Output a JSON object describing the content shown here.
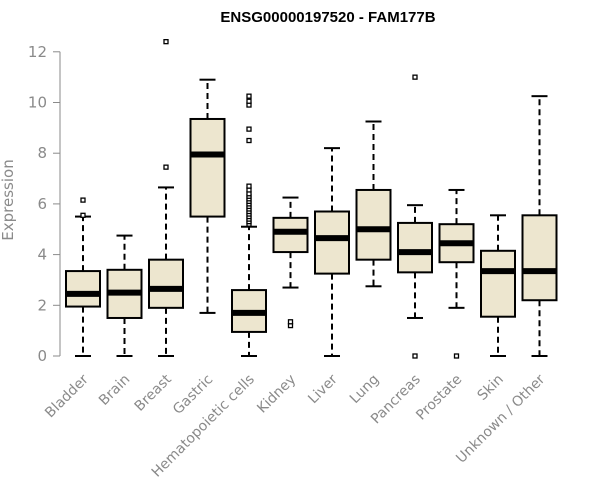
{
  "chart_data": {
    "type": "boxplot",
    "title": "ENSG00000197520 - FAM177B",
    "xlabel": "",
    "ylabel": "Expression",
    "ylim": [
      0,
      12.4
    ],
    "yticks": [
      0,
      2,
      4,
      6,
      8,
      10,
      12
    ],
    "colors": {
      "box_fill": "#ede6cf",
      "box_stroke": "#000000",
      "axis": "#8a8a8a",
      "text": "#8a8a8a"
    },
    "categories": [
      "Bladder",
      "Brain",
      "Breast",
      "Gastric",
      "Hematopoietic cells",
      "Kidney",
      "Liver",
      "Lung",
      "Pancreas",
      "Prostate",
      "Skin",
      "Unknown / Other"
    ],
    "boxes": [
      {
        "name": "Bladder",
        "min": 0,
        "q1": 1.95,
        "median": 2.45,
        "q3": 3.35,
        "max": 5.5,
        "outliers": [
          5.55,
          6.15
        ]
      },
      {
        "name": "Brain",
        "min": 0,
        "q1": 1.5,
        "median": 2.5,
        "q3": 3.4,
        "max": 4.75,
        "outliers": []
      },
      {
        "name": "Breast",
        "min": 0,
        "q1": 1.9,
        "median": 2.65,
        "q3": 3.8,
        "max": 6.65,
        "outliers": [
          7.45,
          12.4
        ]
      },
      {
        "name": "Gastric",
        "min": 1.7,
        "q1": 5.5,
        "median": 7.95,
        "q3": 9.35,
        "max": 10.9,
        "outliers": []
      },
      {
        "name": "Hematopoietic cells",
        "min": 0,
        "q1": 0.95,
        "median": 1.7,
        "q3": 2.6,
        "max": 5.1,
        "outliers": [
          5.2,
          5.3,
          5.4,
          5.5,
          5.6,
          5.7,
          5.8,
          5.9,
          6.0,
          6.1,
          6.2,
          6.3,
          6.4,
          6.55,
          6.7,
          8.5,
          8.95,
          9.9,
          10.05,
          10.25
        ]
      },
      {
        "name": "Kidney",
        "min": 2.7,
        "q1": 4.1,
        "median": 4.9,
        "q3": 5.45,
        "max": 6.25,
        "outliers": [
          1.2,
          1.35
        ]
      },
      {
        "name": "Liver",
        "min": 0,
        "q1": 3.25,
        "median": 4.65,
        "q3": 5.7,
        "max": 8.2,
        "outliers": []
      },
      {
        "name": "Lung",
        "min": 2.75,
        "q1": 3.8,
        "median": 5.0,
        "q3": 6.55,
        "max": 9.25,
        "outliers": []
      },
      {
        "name": "Pancreas",
        "min": 1.5,
        "q1": 3.3,
        "median": 4.1,
        "q3": 5.25,
        "max": 5.95,
        "outliers": [
          0,
          11.0
        ]
      },
      {
        "name": "Prostate",
        "min": 1.9,
        "q1": 3.7,
        "median": 4.45,
        "q3": 5.2,
        "max": 6.55,
        "outliers": [
          0
        ]
      },
      {
        "name": "Skin",
        "min": 0,
        "q1": 1.55,
        "median": 3.35,
        "q3": 4.15,
        "max": 5.55,
        "outliers": []
      },
      {
        "name": "Unknown / Other",
        "min": 0,
        "q1": 2.2,
        "median": 3.35,
        "q3": 5.55,
        "max": 10.25,
        "outliers": []
      }
    ]
  }
}
